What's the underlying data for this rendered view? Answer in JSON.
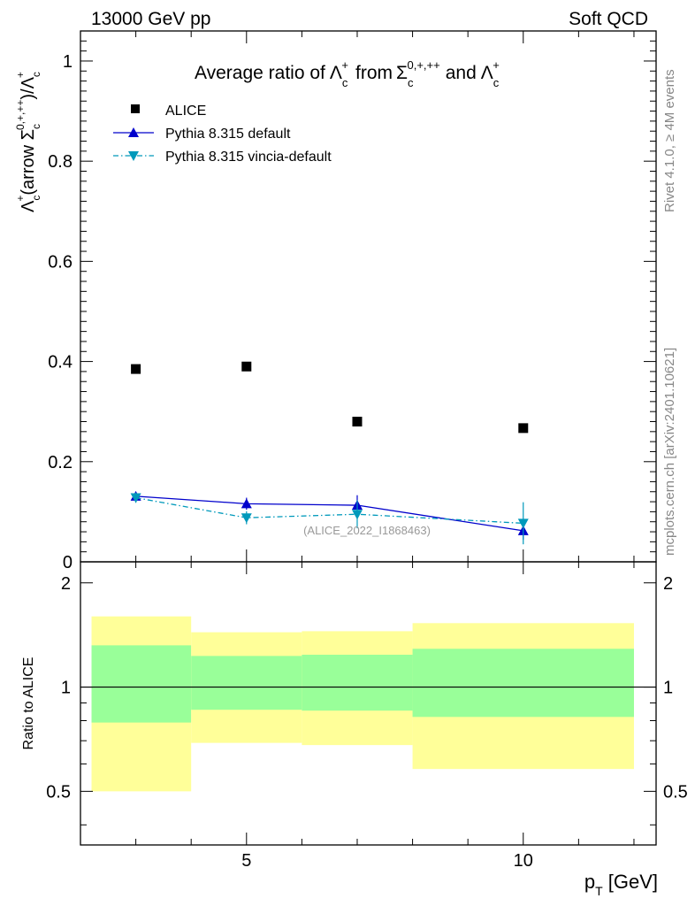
{
  "header": {
    "left_label": "13000 GeV pp",
    "right_label": "Soft QCD"
  },
  "side_labels": {
    "rivet": "Rivet 4.1.0, ≥ 4M events",
    "mcplots": "mcplots.cern.ch [arXiv:2401.10621]"
  },
  "colors": {
    "alice": "#000000",
    "pythia_default": "#0000cc",
    "pythia_vincia": "#0099bb",
    "band_inner": "#99ff99",
    "band_outer": "#ffff99"
  },
  "chart_data": [
    {
      "type": "scatter",
      "title": "Average ratio of Λ_c^+ from Σ_c^{0,+,++} and Λ_c^+",
      "title_parts": {
        "pre": "Average ratio of",
        "lambda": "Λ",
        "sub": "c",
        "sup": "+",
        "from": "from",
        "sigma": "Σ",
        "sigma_sup": "0,+,++",
        "and": "and"
      },
      "ylabel": "Λc+(arrow Σc0,+,++)/Λc+",
      "ylabel_parts": {
        "lambda": "Λ",
        "sub": "c",
        "sup": "+",
        "mid": "(arrow ",
        "sigma": "Σ",
        "sigma_sup": "0,+,++",
        "close": ")/"
      },
      "xlabel": "",
      "xlim": [
        2,
        12.4
      ],
      "ylim": [
        0,
        1.06
      ],
      "y_ticks": [
        0,
        0.2,
        0.4,
        0.6,
        0.8,
        1
      ],
      "y_tick_labels": [
        "0",
        "0.2",
        "0.4",
        "0.6",
        "0.8",
        "1"
      ],
      "x_ticks": [
        5,
        10
      ],
      "annotation": "(ALICE_2022_I1868463)",
      "legend_position": "top-left",
      "legend": [
        "ALICE",
        "Pythia 8.315 default",
        "Pythia 8.315 vincia-default"
      ],
      "series": [
        {
          "name": "ALICE",
          "style": "square",
          "x": [
            3,
            5,
            7,
            10
          ],
          "y": [
            0.385,
            0.39,
            0.28,
            0.267
          ]
        },
        {
          "name": "Pythia 8.315 default",
          "style": "line-triangle-up",
          "x": [
            3,
            5,
            7,
            10
          ],
          "y": [
            0.131,
            0.116,
            0.113,
            0.062
          ],
          "err": [
            0.006,
            0.012,
            0.02,
            0.018
          ]
        },
        {
          "name": "Pythia 8.315 vincia-default",
          "style": "dashdot-triangle-down",
          "x": [
            3,
            5,
            7,
            10
          ],
          "y": [
            0.128,
            0.088,
            0.095,
            0.077
          ],
          "err": [
            0.01,
            0.013,
            0.028,
            0.042
          ]
        }
      ]
    },
    {
      "type": "area",
      "ylabel": "Ratio to ALICE",
      "xlabel": "p_T [GeV]",
      "xlabel_parts": {
        "main": "p",
        "sub": "T",
        "unit": " [GeV]"
      },
      "xlim": [
        2,
        12.4
      ],
      "ylim": [
        0.35,
        2.3
      ],
      "y_ticks": [
        0.5,
        1,
        2
      ],
      "y_tick_labels": [
        "0.5",
        "1",
        "2"
      ],
      "x_ticks": [
        5,
        10
      ],
      "x_tick_labels": [
        "5",
        "10"
      ],
      "reference": 1,
      "bins": [
        {
          "lo": 2.2,
          "hi": 4,
          "inner": [
            0.79,
            1.32
          ],
          "outer": [
            0.5,
            1.6
          ]
        },
        {
          "lo": 4,
          "hi": 6,
          "inner": [
            0.86,
            1.23
          ],
          "outer": [
            0.69,
            1.44
          ]
        },
        {
          "lo": 6,
          "hi": 8,
          "inner": [
            0.855,
            1.24
          ],
          "outer": [
            0.68,
            1.45
          ]
        },
        {
          "lo": 8,
          "hi": 12,
          "inner": [
            0.82,
            1.29
          ],
          "outer": [
            0.58,
            1.53
          ]
        }
      ]
    }
  ]
}
